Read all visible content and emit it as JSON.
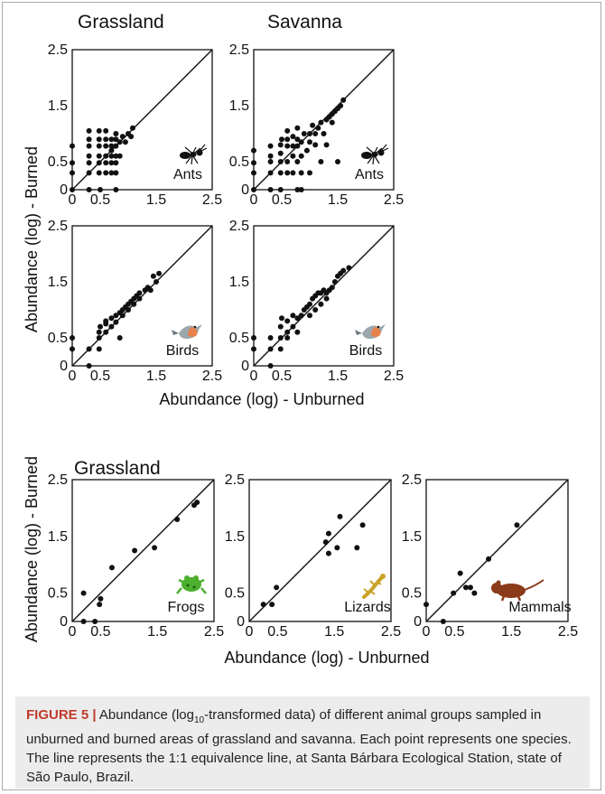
{
  "panel_titles": {
    "grassland_top": "Grassland",
    "savanna_top": "Savanna",
    "grassland_bottom": "Grassland"
  },
  "axis_labels": {
    "y_top": "Abundance (log) - Burned",
    "x_top": "Abundance (log) - Unburned",
    "y_bottom": "Abundance (log) - Burned",
    "x_bottom": "Abundance (log) - Unburned"
  },
  "caption": {
    "label": "FIGURE 5 |",
    "text_before_sub": " Abundance (log",
    "sub": "10",
    "text_after_sub": "-transformed data) of different animal groups sampled in unburned and burned areas of grassland and savanna. Each point represents one species. The line represents the 1:1 equivalence line, at Santa Bárbara Ecological Station, state of São Paulo, Brazil."
  },
  "colors": {
    "caption_label": "#c0392b",
    "caption_bg": "#ececec",
    "frog": "#4caf2e",
    "lizard": "#c9a227",
    "mammal": "#8b3a1a",
    "bird_body": "#9aa7ad",
    "bird_breast": "#e8804a"
  },
  "chart_data": [
    {
      "id": "grassland-ants",
      "type": "scatter",
      "group_label": "Ants",
      "icon": "ant-icon",
      "xlim": [
        0,
        2.5
      ],
      "ylim": [
        0,
        2.5
      ],
      "x_tick_labels": [
        "0",
        "0.5",
        "1.5",
        "2.5"
      ],
      "y_tick_labels": [
        "0",
        "0.5",
        "1.5",
        "2.5"
      ],
      "reference_line": "1:1",
      "points": [
        [
          0,
          0
        ],
        [
          0,
          0.3
        ],
        [
          0,
          0.48
        ],
        [
          0,
          0.78
        ],
        [
          0.3,
          0
        ],
        [
          0.5,
          0
        ],
        [
          0.78,
          0
        ],
        [
          0.3,
          0.3
        ],
        [
          0.3,
          0.48
        ],
        [
          0.3,
          0.6
        ],
        [
          0.3,
          0.78
        ],
        [
          0.3,
          0.9
        ],
        [
          0.3,
          1.05
        ],
        [
          0.48,
          0.3
        ],
        [
          0.48,
          0.48
        ],
        [
          0.48,
          0.6
        ],
        [
          0.48,
          0.78
        ],
        [
          0.48,
          0.9
        ],
        [
          0.48,
          1.05
        ],
        [
          0.6,
          0.3
        ],
        [
          0.6,
          0.48
        ],
        [
          0.6,
          0.6
        ],
        [
          0.6,
          0.78
        ],
        [
          0.6,
          0.9
        ],
        [
          0.6,
          1.05
        ],
        [
          0.7,
          0.3
        ],
        [
          0.7,
          0.48
        ],
        [
          0.7,
          0.6
        ],
        [
          0.7,
          0.7
        ],
        [
          0.7,
          0.78
        ],
        [
          0.7,
          0.9
        ],
        [
          0.78,
          0.3
        ],
        [
          0.78,
          0.48
        ],
        [
          0.78,
          0.6
        ],
        [
          0.78,
          0.78
        ],
        [
          0.78,
          0.9
        ],
        [
          0.78,
          1.0
        ],
        [
          0.85,
          0.6
        ],
        [
          0.85,
          0.85
        ],
        [
          0.9,
          0.95
        ],
        [
          0.95,
          0.85
        ],
        [
          1.0,
          1.0
        ],
        [
          1.05,
          0.95
        ],
        [
          1.08,
          1.1
        ]
      ]
    },
    {
      "id": "savanna-ants",
      "type": "scatter",
      "group_label": "Ants",
      "icon": "ant-icon",
      "xlim": [
        0,
        2.5
      ],
      "ylim": [
        0,
        2.5
      ],
      "x_tick_labels": [
        "0",
        "0.5",
        "1.5",
        "2.5"
      ],
      "y_tick_labels": [
        "0",
        "0.5",
        "1.5",
        "2.5"
      ],
      "reference_line": "1:1",
      "points": [
        [
          0,
          0
        ],
        [
          0,
          0.3
        ],
        [
          0,
          0.48
        ],
        [
          0,
          0.7
        ],
        [
          0.3,
          0
        ],
        [
          0.3,
          0.3
        ],
        [
          0.3,
          0.5
        ],
        [
          0.3,
          0.6
        ],
        [
          0.3,
          0.78
        ],
        [
          0.48,
          0
        ],
        [
          0.48,
          0.3
        ],
        [
          0.48,
          0.5
        ],
        [
          0.48,
          0.65
        ],
        [
          0.48,
          0.8
        ],
        [
          0.5,
          0.9
        ],
        [
          0.6,
          0.3
        ],
        [
          0.6,
          0.5
        ],
        [
          0.6,
          0.78
        ],
        [
          0.6,
          0.9
        ],
        [
          0.6,
          1.05
        ],
        [
          0.7,
          0.3
        ],
        [
          0.7,
          0.6
        ],
        [
          0.7,
          0.78
        ],
        [
          0.7,
          0.95
        ],
        [
          0.78,
          0
        ],
        [
          0.78,
          0.5
        ],
        [
          0.78,
          0.78
        ],
        [
          0.78,
          0.9
        ],
        [
          0.78,
          1.1
        ],
        [
          0.85,
          0
        ],
        [
          0.85,
          0.3
        ],
        [
          0.85,
          0.6
        ],
        [
          0.85,
          0.85
        ],
        [
          0.9,
          1.0
        ],
        [
          0.95,
          0.7
        ],
        [
          1.0,
          0.3
        ],
        [
          1.0,
          0.85
        ],
        [
          1.0,
          1.0
        ],
        [
          1.05,
          1.15
        ],
        [
          1.1,
          0.8
        ],
        [
          1.1,
          1.0
        ],
        [
          1.15,
          1.1
        ],
        [
          1.2,
          1.2
        ],
        [
          1.2,
          0.5
        ],
        [
          1.25,
          1.0
        ],
        [
          1.3,
          1.25
        ],
        [
          1.3,
          0.8
        ],
        [
          1.35,
          1.3
        ],
        [
          1.4,
          1.35
        ],
        [
          1.4,
          1.2
        ],
        [
          1.45,
          1.4
        ],
        [
          1.5,
          1.45
        ],
        [
          1.5,
          0.5
        ],
        [
          1.55,
          1.5
        ],
        [
          1.6,
          1.6
        ]
      ]
    },
    {
      "id": "grassland-birds",
      "type": "scatter",
      "group_label": "Birds",
      "icon": "bird-icon",
      "xlim": [
        0,
        2.5
      ],
      "ylim": [
        0,
        2.5
      ],
      "x_tick_labels": [
        "0",
        "0.5",
        "1.5",
        "2.5"
      ],
      "y_tick_labels": [
        "0",
        "0.5",
        "1.5",
        "2.5"
      ],
      "reference_line": "1:1",
      "points": [
        [
          0,
          0.3
        ],
        [
          0,
          0.5
        ],
        [
          0.3,
          0
        ],
        [
          0.3,
          0.3
        ],
        [
          0.48,
          0.3
        ],
        [
          0.48,
          0.5
        ],
        [
          0.48,
          0.6
        ],
        [
          0.5,
          0.7
        ],
        [
          0.6,
          0.6
        ],
        [
          0.6,
          0.75
        ],
        [
          0.6,
          0.8
        ],
        [
          0.7,
          0.7
        ],
        [
          0.7,
          0.85
        ],
        [
          0.78,
          0.78
        ],
        [
          0.78,
          0.9
        ],
        [
          0.85,
          0.5
        ],
        [
          0.85,
          0.95
        ],
        [
          0.9,
          0.9
        ],
        [
          0.9,
          1.0
        ],
        [
          0.95,
          1.05
        ],
        [
          1.0,
          1.0
        ],
        [
          1.0,
          1.1
        ],
        [
          1.05,
          1.15
        ],
        [
          1.1,
          1.1
        ],
        [
          1.1,
          1.2
        ],
        [
          1.15,
          1.25
        ],
        [
          1.2,
          1.2
        ],
        [
          1.2,
          1.3
        ],
        [
          1.3,
          1.35
        ],
        [
          1.35,
          1.4
        ],
        [
          1.4,
          1.35
        ],
        [
          1.45,
          1.6
        ],
        [
          1.5,
          1.5
        ],
        [
          1.55,
          1.65
        ]
      ]
    },
    {
      "id": "savanna-birds",
      "type": "scatter",
      "group_label": "Birds",
      "icon": "bird-icon",
      "xlim": [
        0,
        2.5
      ],
      "ylim": [
        0,
        2.5
      ],
      "x_tick_labels": [
        "0",
        "0.5",
        "1.5",
        "2.5"
      ],
      "y_tick_labels": [
        "0",
        "0.5",
        "1.5",
        "2.5"
      ],
      "reference_line": "1:1",
      "points": [
        [
          0,
          0.3
        ],
        [
          0,
          0.5
        ],
        [
          0.3,
          0
        ],
        [
          0.3,
          0.3
        ],
        [
          0.3,
          0.5
        ],
        [
          0.48,
          0.3
        ],
        [
          0.48,
          0.5
        ],
        [
          0.48,
          0.7
        ],
        [
          0.5,
          0.85
        ],
        [
          0.6,
          0.5
        ],
        [
          0.6,
          0.6
        ],
        [
          0.6,
          0.8
        ],
        [
          0.7,
          0.7
        ],
        [
          0.7,
          0.9
        ],
        [
          0.78,
          0.6
        ],
        [
          0.78,
          0.85
        ],
        [
          0.85,
          0.9
        ],
        [
          0.9,
          1.0
        ],
        [
          0.95,
          1.05
        ],
        [
          1.0,
          0.9
        ],
        [
          1.0,
          1.1
        ],
        [
          1.05,
          1.2
        ],
        [
          1.1,
          1.0
        ],
        [
          1.1,
          1.25
        ],
        [
          1.15,
          1.3
        ],
        [
          1.2,
          1.1
        ],
        [
          1.2,
          1.3
        ],
        [
          1.25,
          1.35
        ],
        [
          1.3,
          1.2
        ],
        [
          1.3,
          1.3
        ],
        [
          1.35,
          1.35
        ],
        [
          1.4,
          1.4
        ],
        [
          1.45,
          1.5
        ],
        [
          1.5,
          1.6
        ],
        [
          1.55,
          1.65
        ],
        [
          1.6,
          1.7
        ],
        [
          1.7,
          1.75
        ]
      ]
    },
    {
      "id": "grassland-frogs",
      "type": "scatter",
      "group_label": "Frogs",
      "icon": "frog-icon",
      "xlim": [
        0,
        2.5
      ],
      "ylim": [
        0,
        2.5
      ],
      "x_tick_labels": [
        "0",
        "0.5",
        "1.5",
        "2.5"
      ],
      "y_tick_labels": [
        "0",
        "0.5",
        "1.5",
        "2.5"
      ],
      "reference_line": "1:1",
      "points": [
        [
          0.2,
          0.5
        ],
        [
          0.2,
          0
        ],
        [
          0.4,
          0
        ],
        [
          0.48,
          0.3
        ],
        [
          0.5,
          0.4
        ],
        [
          0.7,
          0.95
        ],
        [
          1.1,
          1.25
        ],
        [
          1.45,
          1.3
        ],
        [
          1.85,
          1.8
        ],
        [
          2.15,
          2.05
        ],
        [
          2.2,
          2.1
        ]
      ]
    },
    {
      "id": "grassland-lizards",
      "type": "scatter",
      "group_label": "Lizards",
      "icon": "lizard-icon",
      "xlim": [
        0,
        2.5
      ],
      "ylim": [
        0,
        2.5
      ],
      "x_tick_labels": [
        "0",
        "0.5",
        "1.5",
        "2.5"
      ],
      "y_tick_labels": [
        "0",
        "0.5",
        "1.5",
        "2.5"
      ],
      "reference_line": "1:1",
      "points": [
        [
          0.25,
          0.3
        ],
        [
          0.4,
          0.3
        ],
        [
          0.48,
          0.6
        ],
        [
          1.35,
          1.4
        ],
        [
          1.4,
          1.2
        ],
        [
          1.4,
          1.55
        ],
        [
          1.55,
          1.3
        ],
        [
          1.6,
          1.85
        ],
        [
          1.9,
          1.3
        ],
        [
          2.0,
          1.7
        ]
      ]
    },
    {
      "id": "grassland-mammals",
      "type": "scatter",
      "group_label": "Mammals",
      "icon": "mammal-icon",
      "xlim": [
        0,
        2.5
      ],
      "ylim": [
        0,
        2.5
      ],
      "x_tick_labels": [
        "0",
        "0.5",
        "1.5",
        "2.5"
      ],
      "y_tick_labels": [
        "0",
        "0.5",
        "1.5",
        "2.5"
      ],
      "reference_line": "1:1",
      "points": [
        [
          0,
          0.3
        ],
        [
          0.3,
          0
        ],
        [
          0.48,
          0.5
        ],
        [
          0.6,
          0.85
        ],
        [
          0.7,
          0.6
        ],
        [
          0.78,
          0.6
        ],
        [
          0.85,
          0.5
        ],
        [
          1.1,
          1.1
        ],
        [
          1.6,
          1.7
        ]
      ]
    }
  ]
}
